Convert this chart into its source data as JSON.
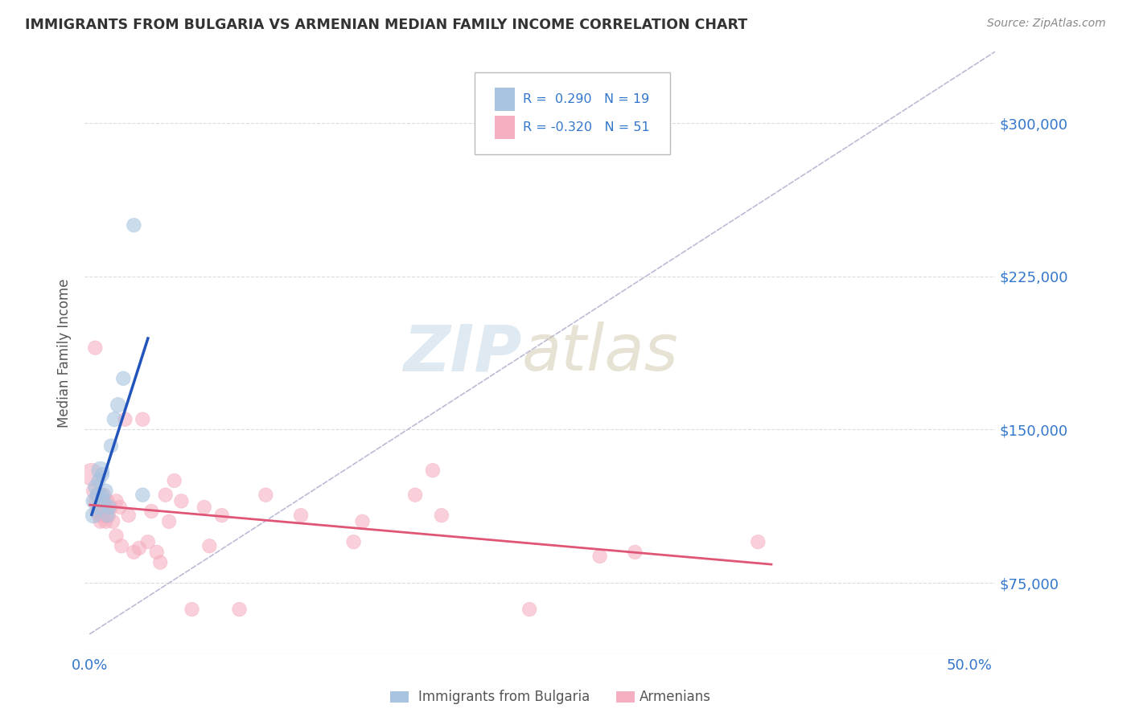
{
  "title": "IMMIGRANTS FROM BULGARIA VS ARMENIAN MEDIAN FAMILY INCOME CORRELATION CHART",
  "source": "Source: ZipAtlas.com",
  "ylabel": "Median Family Income",
  "ytick_labels": [
    "$75,000",
    "$150,000",
    "$225,000",
    "$300,000"
  ],
  "ytick_values": [
    75000,
    150000,
    225000,
    300000
  ],
  "ymin": 40000,
  "ymax": 335000,
  "xmin": -0.003,
  "xmax": 0.515,
  "xlabel_ticks": [
    0.0,
    0.5
  ],
  "xlabel_labels": [
    "0.0%",
    "50.0%"
  ],
  "legend_r1": "R =  0.290",
  "legend_n1": "N = 19",
  "legend_r2": "R = -0.320",
  "legend_n2": "N = 51",
  "bulgaria_color": "#a8c4e0",
  "armenia_color": "#f5afc0",
  "bulgaria_line_color": "#2255bb",
  "armenia_line_color": "#e05575",
  "trendline_dashed_color": "#aaaacc",
  "bulgaria_x": [
    0.002,
    0.002,
    0.003,
    0.004,
    0.005,
    0.005,
    0.006,
    0.007,
    0.007,
    0.008,
    0.009,
    0.01,
    0.011,
    0.012,
    0.014,
    0.016,
    0.019,
    0.025,
    0.03
  ],
  "bulgaria_y": [
    108000,
    115000,
    122000,
    118000,
    112000,
    125000,
    130000,
    118000,
    128000,
    115000,
    120000,
    108000,
    112000,
    142000,
    155000,
    162000,
    175000,
    250000,
    118000
  ],
  "bulgaria_size": [
    200,
    180,
    160,
    160,
    180,
    160,
    250,
    160,
    160,
    160,
    160,
    160,
    160,
    160,
    180,
    180,
    160,
    160,
    160
  ],
  "armenia_x": [
    0.001,
    0.002,
    0.003,
    0.003,
    0.004,
    0.005,
    0.005,
    0.006,
    0.006,
    0.007,
    0.007,
    0.008,
    0.008,
    0.009,
    0.01,
    0.01,
    0.012,
    0.013,
    0.015,
    0.015,
    0.017,
    0.018,
    0.02,
    0.022,
    0.025,
    0.028,
    0.03,
    0.033,
    0.035,
    0.038,
    0.04,
    0.043,
    0.045,
    0.048,
    0.052,
    0.058,
    0.065,
    0.068,
    0.075,
    0.085,
    0.1,
    0.12,
    0.15,
    0.185,
    0.2,
    0.25,
    0.31,
    0.38,
    0.195,
    0.29,
    0.155
  ],
  "armenia_y": [
    128000,
    120000,
    190000,
    115000,
    110000,
    108000,
    118000,
    112000,
    105000,
    115000,
    108000,
    118000,
    112000,
    105000,
    108000,
    115000,
    112000,
    105000,
    115000,
    98000,
    112000,
    93000,
    155000,
    108000,
    90000,
    92000,
    155000,
    95000,
    110000,
    90000,
    85000,
    118000,
    105000,
    125000,
    115000,
    62000,
    112000,
    93000,
    108000,
    62000,
    118000,
    108000,
    95000,
    118000,
    108000,
    62000,
    90000,
    95000,
    130000,
    88000,
    105000
  ],
  "armenia_size": [
    400,
    160,
    160,
    160,
    160,
    160,
    200,
    160,
    160,
    160,
    200,
    160,
    160,
    160,
    200,
    160,
    160,
    160,
    160,
    160,
    160,
    160,
    160,
    160,
    160,
    160,
    160,
    160,
    160,
    160,
    160,
    160,
    160,
    160,
    160,
    160,
    160,
    160,
    160,
    160,
    160,
    160,
    160,
    160,
    160,
    160,
    160,
    160,
    160,
    160,
    160
  ],
  "background_color": "#ffffff",
  "grid_color": "#cccccc",
  "title_color": "#333333",
  "axis_label_color": "#555555",
  "tick_label_color": "#3377cc",
  "source_color": "#888888"
}
